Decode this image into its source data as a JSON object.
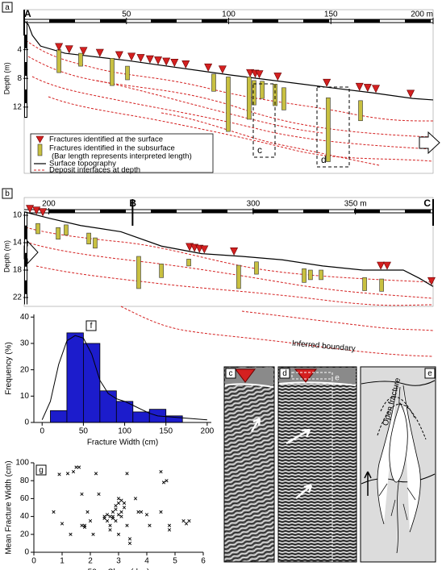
{
  "chart_data": [
    {
      "type": "profile",
      "panel": "a",
      "xlim": [
        0,
        200
      ],
      "xticks": [
        50,
        100,
        150,
        {
          "value": 200,
          "label": "200 m"
        }
      ],
      "ylabel": "Depth (m)",
      "ylim": [
        0,
        20.5
      ],
      "yticks": [
        4,
        8,
        12
      ],
      "sections": [
        {
          "label": "A",
          "x": 0
        }
      ],
      "topography": {
        "name": "Surface topography",
        "color": "#000000",
        "x": [
          0,
          2,
          4,
          8,
          20,
          50,
          100,
          150,
          170,
          190,
          200
        ],
        "depth": [
          0,
          0.5,
          2,
          3.5,
          4.5,
          5.5,
          7.5,
          9.3,
          10,
          10.8,
          11
        ]
      },
      "surface_fractures": {
        "name": "Fractures identified at the surface",
        "color": "#d42020",
        "x": [
          17,
          22,
          29,
          37,
          46.5,
          52.5,
          57,
          61.5,
          65.5,
          69.5,
          73.5,
          79,
          90,
          97,
          110.5,
          113,
          115,
          124,
          148,
          164,
          168,
          172,
          189
        ]
      },
      "subsurface_fractures": {
        "name": "Fractures identified in the subsurface",
        "note": "(Bar length represents interpreted length)",
        "color": "#c8c040",
        "x": [
          17,
          27.6,
          43,
          50.5,
          92.7,
          99.8,
          110,
          112.4,
          116.4,
          122.7,
          127,
          148.7,
          164.5
        ],
        "top": [
          4.0,
          4.5,
          5.2,
          6.3,
          7.4,
          7.8,
          7.8,
          8.3,
          8.4,
          8.8,
          9.3,
          10.7,
          11.1
        ],
        "bottom": [
          7.2,
          6.3,
          9.0,
          8.2,
          9.8,
          15.4,
          13.7,
          11.7,
          10.8,
          11.8,
          12.4,
          19.6,
          13.9
        ]
      },
      "deposit_interfaces": {
        "name": "Deposit interfaces at depth",
        "color": "#d42020"
      },
      "boxes": [
        "c",
        "d"
      ]
    },
    {
      "type": "profile",
      "panel": "b",
      "xlim": [
        188,
        388
      ],
      "xticks": [
        200,
        300,
        {
          "value": 350,
          "label": "350 m"
        }
      ],
      "ylabel": "Depth (m)",
      "ylim": [
        9,
        23.5
      ],
      "yticks": [
        10,
        14,
        18,
        22
      ],
      "sections": [
        {
          "label": "B",
          "x": 241
        },
        {
          "label": "C",
          "x": 388
        }
      ],
      "topography": {
        "color": "#000000",
        "x": [
          188,
          199.8,
          215.6,
          235.3,
          255.1,
          274.8,
          294.5,
          314.2,
          334,
          353.7,
          373.4,
          381.3,
          388
        ],
        "depth": [
          9.5,
          10.4,
          11.5,
          12.4,
          14.5,
          15.6,
          16.0,
          16.5,
          17.4,
          18.0,
          18.0,
          19.2,
          20.4
        ]
      },
      "surface_fractures": {
        "color": "#d42020",
        "x": [
          190.8,
          194,
          197.1,
          268.9,
          271.3,
          273.7,
          276.1,
          290.6,
          362.4,
          365.5,
          387.2
        ]
      },
      "subsurface_fractures": {
        "color": "#c8c040",
        "x": [
          194.7,
          204.6,
          208.5,
          219.6,
          222.7,
          244,
          255.1,
          268.5,
          292.9,
          301.6,
          324.9,
          328,
          333.2,
          354.5,
          362.8
        ],
        "top": [
          11.2,
          11.8,
          11.4,
          12.6,
          13.3,
          16.0,
          17.1,
          16.4,
          17.3,
          16.8,
          17.8,
          18.0,
          18.0,
          19.1,
          19.3
        ],
        "bottom": [
          12.7,
          13.5,
          12.9,
          14.2,
          14.8,
          20.7,
          19.1,
          17.4,
          20.7,
          18.6,
          19.8,
          19.4,
          19.4,
          21.0,
          21.1
        ]
      },
      "annotation": "Inferred boundary"
    },
    {
      "type": "histogram",
      "panel": "f",
      "color": "#1c1ccc",
      "bins": [
        10,
        30,
        50,
        70,
        90,
        110,
        130,
        150,
        170
      ],
      "values": [
        4.5,
        34,
        30,
        12,
        8,
        4,
        5,
        2.5
      ],
      "curve": {
        "x": [
          0,
          10,
          20,
          30,
          40,
          50,
          60,
          70,
          80,
          90,
          100,
          110,
          120,
          130,
          140,
          160,
          180,
          200
        ],
        "y": [
          1,
          8,
          22,
          31,
          33,
          32,
          26,
          16,
          11,
          9,
          8,
          6.5,
          5,
          3.5,
          2.5,
          2,
          1.5,
          1
        ]
      },
      "xlabel": "Fracture Width (cm)",
      "ylabel": "Frequency (%)",
      "xlim": [
        -10,
        205
      ],
      "ylim": [
        0,
        41
      ],
      "xticks": [
        0,
        50,
        100,
        150,
        200
      ],
      "yticks": [
        0,
        10,
        20,
        30,
        40
      ]
    },
    {
      "type": "scatter",
      "panel": "g",
      "color": "#000000",
      "x": [
        0.7,
        0.9,
        1.0,
        1.2,
        1.3,
        1.4,
        1.5,
        1.6,
        1.7,
        1.7,
        1.8,
        1.8,
        1.9,
        2.0,
        2.1,
        2.2,
        2.3,
        2.5,
        2.5,
        2.6,
        2.6,
        2.7,
        2.7,
        2.7,
        2.8,
        2.8,
        2.8,
        2.9,
        2.9,
        2.9,
        3.0,
        3.0,
        3.0,
        3.0,
        3.1,
        3.1,
        3.1,
        3.2,
        3.2,
        3.3,
        3.3,
        3.4,
        3.4,
        3.6,
        3.7,
        3.8,
        4.0,
        4.1,
        4.5,
        4.5,
        4.6,
        4.7,
        4.8,
        4.8,
        5.3,
        5.4,
        5.5
      ],
      "values": [
        45,
        87,
        32,
        88,
        20,
        90,
        95,
        95,
        30,
        65,
        30,
        28,
        45,
        35,
        20,
        88,
        65,
        40,
        38,
        35,
        42,
        40,
        30,
        25,
        45,
        40,
        38,
        48,
        52,
        35,
        60,
        55,
        42,
        20,
        58,
        45,
        40,
        50,
        55,
        88,
        30,
        15,
        10,
        60,
        45,
        45,
        42,
        30,
        90,
        45,
        78,
        80,
        30,
        25,
        35,
        32,
        35
      ],
      "xlabel": "50 m Slope (deg)",
      "ylabel": "Mean Fracture Width (cm)",
      "xlim": [
        0,
        6
      ],
      "ylim": [
        0,
        100
      ],
      "xticks": [
        0,
        1,
        2,
        3,
        4,
        5,
        6
      ],
      "yticks": [
        0,
        20,
        40,
        60,
        80,
        100
      ]
    }
  ],
  "image_panels": [
    {
      "label": "c"
    },
    {
      "label": "d",
      "inset": "e"
    },
    {
      "label": "e",
      "annotation": "Open fracture"
    }
  ]
}
